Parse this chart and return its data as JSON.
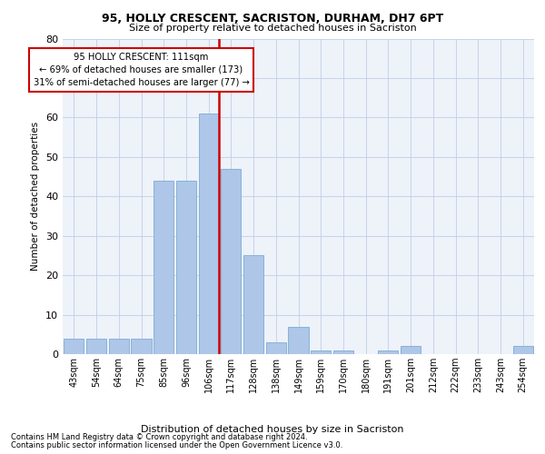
{
  "title1": "95, HOLLY CRESCENT, SACRISTON, DURHAM, DH7 6PT",
  "title2": "Size of property relative to detached houses in Sacriston",
  "xlabel": "Distribution of detached houses by size in Sacriston",
  "ylabel": "Number of detached properties",
  "categories": [
    "43sqm",
    "54sqm",
    "64sqm",
    "75sqm",
    "85sqm",
    "96sqm",
    "106sqm",
    "117sqm",
    "128sqm",
    "138sqm",
    "149sqm",
    "159sqm",
    "170sqm",
    "180sqm",
    "191sqm",
    "201sqm",
    "212sqm",
    "222sqm",
    "233sqm",
    "243sqm",
    "254sqm"
  ],
  "values": [
    4,
    4,
    4,
    4,
    44,
    44,
    61,
    47,
    25,
    3,
    7,
    1,
    1,
    0,
    1,
    2,
    0,
    0,
    0,
    0,
    2
  ],
  "bar_color": "#aec6e8",
  "bar_edge_color": "#7aadd4",
  "red_line_color": "#cc0000",
  "annotation_box_color": "#ffffff",
  "annotation_box_edge": "#cc0000",
  "annotation_text1": "95 HOLLY CRESCENT: 111sqm",
  "annotation_text2": "← 69% of detached houses are smaller (173)",
  "annotation_text3": "31% of semi-detached houses are larger (77) →",
  "ylim": [
    0,
    80
  ],
  "yticks": [
    0,
    10,
    20,
    30,
    40,
    50,
    60,
    70,
    80
  ],
  "background_color": "#eef2f9",
  "footnote1": "Contains HM Land Registry data © Crown copyright and database right 2024.",
  "footnote2": "Contains public sector information licensed under the Open Government Licence v3.0.",
  "red_line_x": 6.45
}
